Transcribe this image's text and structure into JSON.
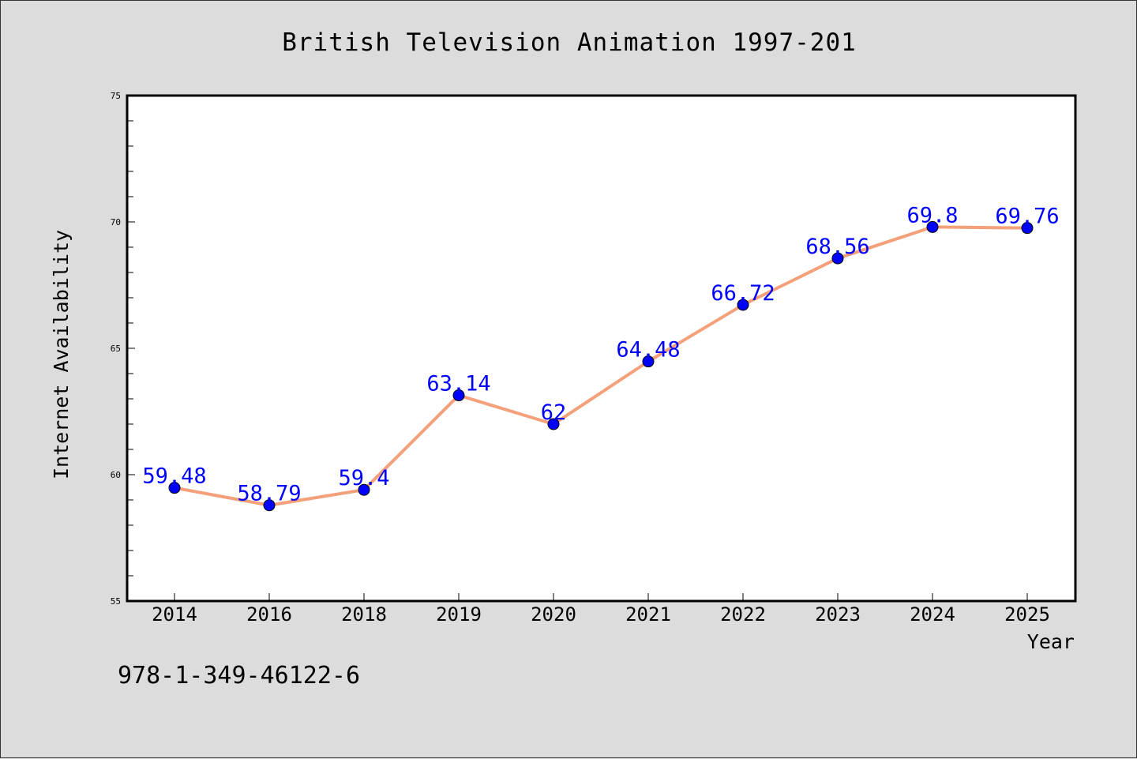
{
  "chart_data": {
    "type": "line",
    "title": "British Television Animation 1997-201",
    "xlabel": "Year",
    "ylabel": "Internet Availability",
    "categories": [
      "2014",
      "2016",
      "2018",
      "2019",
      "2020",
      "2021",
      "2022",
      "2023",
      "2024",
      "2025"
    ],
    "series": [
      {
        "values": [
          59.48,
          58.79,
          59.4,
          63.14,
          62,
          64.48,
          66.72,
          68.56,
          69.8,
          69.76
        ],
        "line_color": "#f4a07a",
        "marker_color": "#0000ff"
      }
    ],
    "data_labels": [
      "59.48",
      "58.79",
      "59.4",
      "63.14",
      "62",
      "64.48",
      "66.72",
      "68.56",
      "69.8",
      "69.76"
    ],
    "ylim": [
      55,
      75
    ],
    "yticks": [
      "55",
      "60",
      "65",
      "70",
      "75"
    ],
    "grid": false,
    "legend": "none",
    "label_color": "#0000ff"
  },
  "footnote": "978-1-349-46122-6"
}
